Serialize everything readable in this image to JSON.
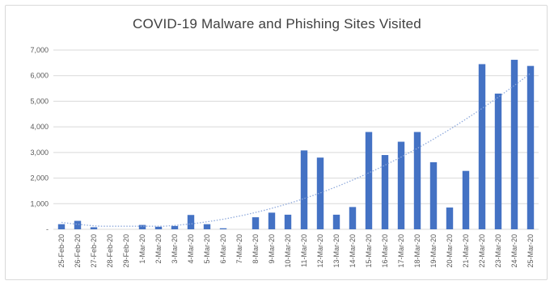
{
  "chart_data": {
    "type": "bar",
    "title": "COVID-19 Malware and Phishing Sites Visited",
    "xlabel": "",
    "ylabel": "",
    "ylim": [
      0,
      7000
    ],
    "yticks": [
      0,
      1000,
      2000,
      3000,
      4000,
      5000,
      6000,
      7000
    ],
    "ytick_labels": [
      "-",
      "1,000",
      "2,000",
      "3,000",
      "4,000",
      "5,000",
      "6,000",
      "7,000"
    ],
    "categories": [
      "25-Feb-20",
      "26-Feb-20",
      "27-Feb-20",
      "28-Feb-20",
      "29-Feb-20",
      "1-Mar-20",
      "2-Mar-20",
      "3-Mar-20",
      "4-Mar-20",
      "5-Mar-20",
      "6-Mar-20",
      "7-Mar-20",
      "8-Mar-20",
      "9-Mar-20",
      "10-Mar-20",
      "11-Mar-20",
      "12-Mar-20",
      "13-Mar-20",
      "14-Mar-20",
      "15-Mar-20",
      "16-Mar-20",
      "17-Mar-20",
      "18-Mar-20",
      "19-Mar-20",
      "20-Mar-20",
      "21-Mar-20",
      "22-Mar-20",
      "23-Mar-20",
      "24-Mar-20",
      "25-Mar-20"
    ],
    "values": [
      200,
      330,
      80,
      0,
      0,
      170,
      100,
      130,
      560,
      200,
      40,
      0,
      470,
      650,
      570,
      3080,
      2800,
      570,
      870,
      3800,
      2900,
      3420,
      3800,
      2620,
      850,
      2280,
      6450,
      5300,
      6620,
      6380
    ],
    "trendline": {
      "style": "dotted",
      "kind": "polynomial"
    },
    "grid": true,
    "legend": "none",
    "colors": {
      "bar": "#4472c4",
      "trend": "#8faadc",
      "grid": "#d9d9d9",
      "text": "#595959",
      "title": "#404040"
    }
  }
}
